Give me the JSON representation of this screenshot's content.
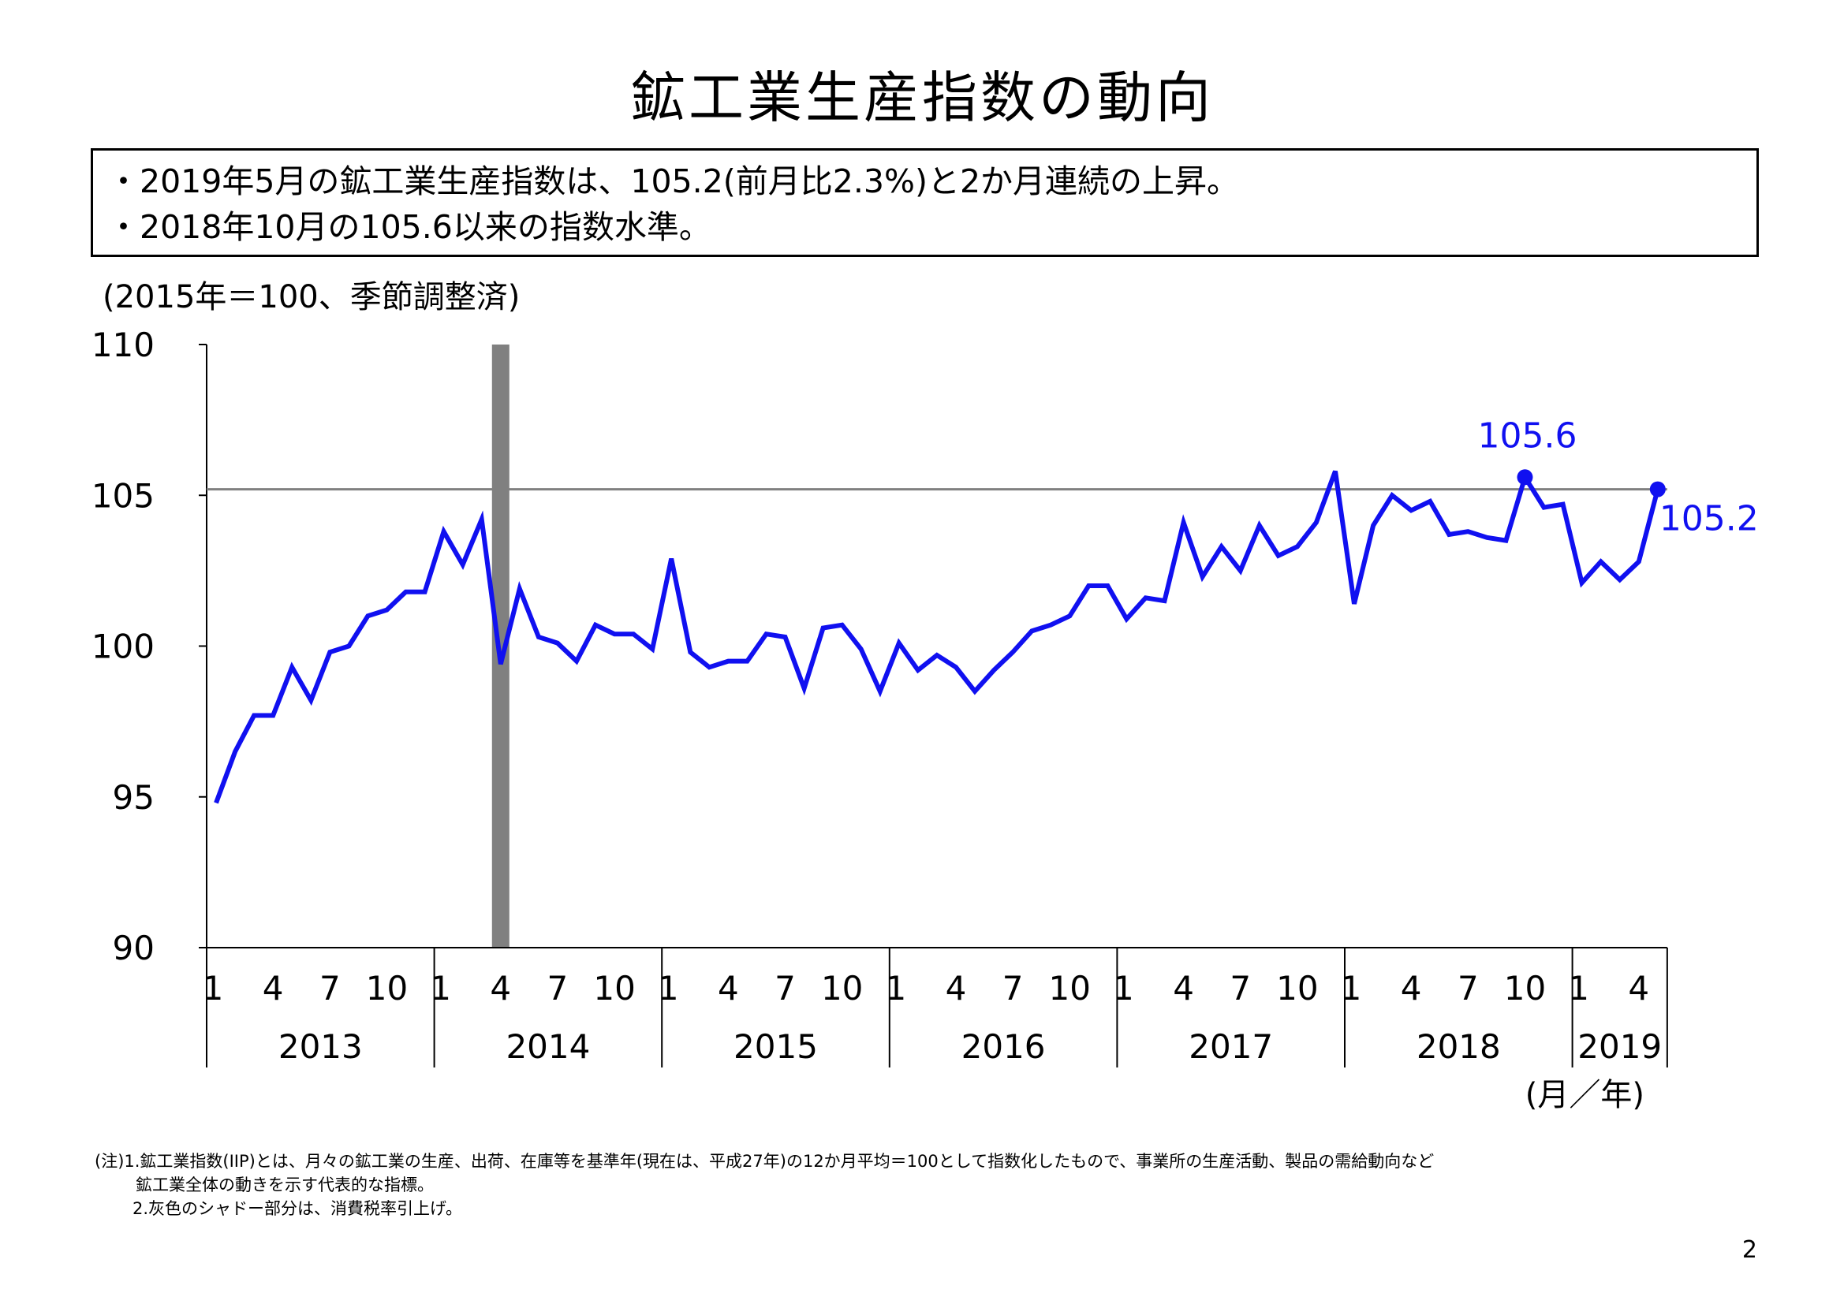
{
  "title": "鉱工業生産指数の動向",
  "summary": [
    "・2019年5月の鉱工業生産指数は、105.2(前月比2.3%)と2か月連続の上昇。",
    "・2018年10月の105.6以来の指数水準。"
  ],
  "unit_label": "(2015年＝100、季節調整済)",
  "axis_unit": "(月／年)",
  "notes": [
    "(注)1.鉱工業指数(IIP)とは、月々の鉱工業の生産、出荷、在庫等を基準年(現在は、平成27年)の12か月平均＝100として指数化したもので、事業所の生産活動、製品の需給動向など",
    "鉱工業全体の動きを示す代表的な指標。",
    "2.灰色のシャドー部分は、消費税率引上げ。"
  ],
  "page_number": "2",
  "chart_data": {
    "type": "line",
    "title": "",
    "xlabel": "(月／年)",
    "ylabel": "(2015年＝100、季節調整済)",
    "ylim": [
      90,
      110
    ],
    "yticks": [
      "90",
      "95",
      "100",
      "105",
      "110"
    ],
    "years": [
      "2013",
      "2014",
      "2015",
      "2016",
      "2017",
      "2018",
      "2019"
    ],
    "month_ticks": [
      "1",
      "4",
      "7",
      "10"
    ],
    "month_ticks_2019": [
      "1",
      "4"
    ],
    "series": [
      {
        "name": "",
        "color": "#1010f0",
        "start": "2013-01",
        "values": [
          94.8,
          96.5,
          97.7,
          97.7,
          99.3,
          98.2,
          99.8,
          100.0,
          101.0,
          101.2,
          101.8,
          101.8,
          103.8,
          102.7,
          104.2,
          99.4,
          101.9,
          100.3,
          100.1,
          99.5,
          100.7,
          100.4,
          100.4,
          99.9,
          102.9,
          99.8,
          99.3,
          99.5,
          99.5,
          100.4,
          100.3,
          98.6,
          100.6,
          100.7,
          99.9,
          98.5,
          100.1,
          99.2,
          99.7,
          99.3,
          98.5,
          99.2,
          99.8,
          100.5,
          100.7,
          101.0,
          102.0,
          102.0,
          100.9,
          101.6,
          101.5,
          104.1,
          102.3,
          103.3,
          102.5,
          104.0,
          103.0,
          103.3,
          104.1,
          105.8,
          101.4,
          104.0,
          105.0,
          104.5,
          104.8,
          103.7,
          103.8,
          103.6,
          103.5,
          105.6,
          104.6,
          104.7,
          102.1,
          102.8,
          102.2,
          102.8,
          105.2
        ]
      }
    ],
    "annotations": [
      {
        "label": "105.6",
        "date": "2018-10",
        "value": 105.6
      },
      {
        "label": "105.2",
        "date": "2019-05",
        "value": 105.2
      }
    ],
    "reference_line": {
      "value": 105.2,
      "color": "#808080"
    },
    "shaded_period": {
      "date": "2014-04",
      "color": "#808080"
    },
    "grid": false,
    "legend": "none"
  }
}
